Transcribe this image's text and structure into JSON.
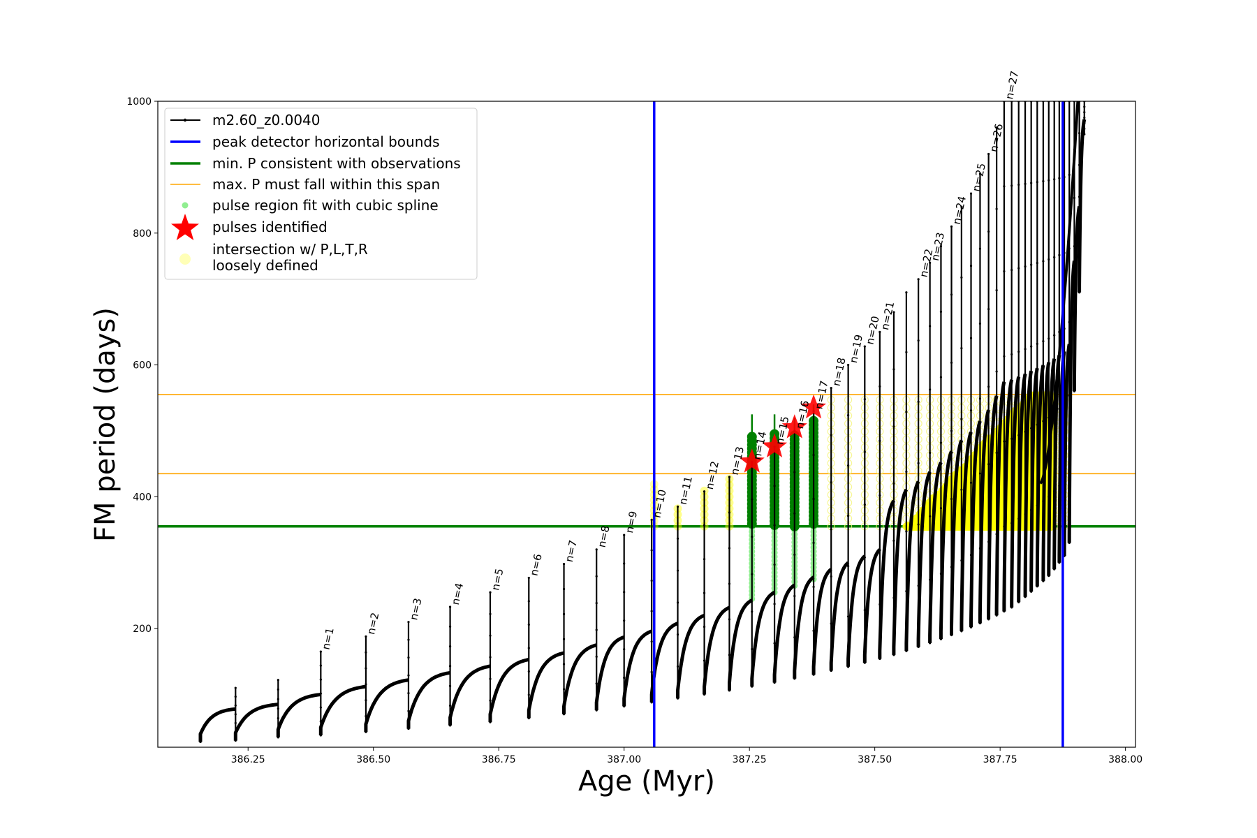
{
  "chart_data": {
    "type": "line",
    "xlabel": "Age (Myr)",
    "ylabel": "FM period (days)",
    "xlim": [
      386.07,
      388.02
    ],
    "ylim": [
      20,
      1000
    ],
    "xticks": [
      386.25,
      386.5,
      386.75,
      387.0,
      387.25,
      387.5,
      387.75,
      388.0
    ],
    "xtick_labels": [
      "386.25",
      "386.50",
      "386.75",
      "387.00",
      "387.25",
      "387.50",
      "387.75",
      "388.00"
    ],
    "yticks": [
      200,
      400,
      600,
      800,
      1000
    ],
    "ytick_labels": [
      "200",
      "400",
      "600",
      "800",
      "1000"
    ],
    "grid": false,
    "legend_position": "upper-left",
    "legend": [
      {
        "label": "m2.60_z0.0040",
        "kind": "line-marker",
        "color": "#000000"
      },
      {
        "label": "peak detector horizontal bounds",
        "kind": "line",
        "color": "#0000ff"
      },
      {
        "label": "min. P consistent with observations",
        "kind": "line",
        "color": "#008000"
      },
      {
        "label": "max. P must fall within this span",
        "kind": "thin-line",
        "color": "#ffa500"
      },
      {
        "label": "pulse region fit with cubic spline",
        "kind": "dot",
        "color": "#90ee90"
      },
      {
        "label": "pulses identified",
        "kind": "star",
        "color": "#ff0000"
      },
      {
        "label": "intersection w/ P,L,T,R\nloosely defined",
        "kind": "circle",
        "color": "#ffff99"
      }
    ],
    "vertical_bounds": [
      387.06,
      387.875
    ],
    "min_period": 355,
    "max_period_span": [
      435,
      555
    ],
    "colors": {
      "track": "#000000",
      "bounds": "#0000ff",
      "minp": "#008000",
      "maxp": "#ffa500",
      "spline": "#90ee90",
      "spline_dark": "#008000",
      "stars": "#ff0000",
      "intersect": "#ffff00"
    },
    "pulses": [
      {
        "x": 386.155,
        "base": 28,
        "peak": 42,
        "pre": 30
      },
      {
        "x": 386.225,
        "base": 30,
        "peak": 110,
        "pre": 78
      },
      {
        "x": 386.31,
        "base": 35,
        "peak": 122,
        "pre": 85
      },
      {
        "x": 386.395,
        "base": 38,
        "peak": 165,
        "pre": 100,
        "label": "n=1"
      },
      {
        "x": 386.485,
        "base": 43,
        "peak": 188,
        "pre": 112,
        "label": "n=2"
      },
      {
        "x": 386.57,
        "base": 48,
        "peak": 210,
        "pre": 122,
        "label": "n=3"
      },
      {
        "x": 386.653,
        "base": 53,
        "peak": 233,
        "pre": 133,
        "label": "n=4"
      },
      {
        "x": 386.733,
        "base": 58,
        "peak": 255,
        "pre": 143,
        "label": "n=5"
      },
      {
        "x": 386.81,
        "base": 64,
        "peak": 277,
        "pre": 153,
        "label": "n=6"
      },
      {
        "x": 386.88,
        "base": 70,
        "peak": 298,
        "pre": 163,
        "label": "n=7"
      },
      {
        "x": 386.945,
        "base": 76,
        "peak": 320,
        "pre": 175,
        "label": "n=8"
      },
      {
        "x": 387.0,
        "base": 82,
        "peak": 342,
        "pre": 187,
        "label": "n=9"
      },
      {
        "x": 387.055,
        "base": 88,
        "peak": 365,
        "pre": 196,
        "label": "n=10"
      },
      {
        "x": 387.107,
        "base": 94,
        "peak": 385,
        "pre": 208,
        "label": "n=11"
      },
      {
        "x": 387.16,
        "base": 100,
        "peak": 408,
        "pre": 220,
        "label": "n=12"
      },
      {
        "x": 387.21,
        "base": 106,
        "peak": 430,
        "pre": 232,
        "label": "n=13"
      },
      {
        "x": 387.255,
        "base": 112,
        "peak": 453,
        "pre": 243,
        "label": "n=14"
      },
      {
        "x": 387.3,
        "base": 118,
        "peak": 476,
        "pre": 255,
        "label": "n=15"
      },
      {
        "x": 387.34,
        "base": 124,
        "peak": 500,
        "pre": 266,
        "label": "n=16"
      },
      {
        "x": 387.378,
        "base": 130,
        "peak": 530,
        "pre": 278,
        "label": "n=17"
      },
      {
        "x": 387.413,
        "base": 136,
        "peak": 565,
        "pre": 290,
        "label": "n=18"
      },
      {
        "x": 387.447,
        "base": 142,
        "peak": 600,
        "pre": 300,
        "label": "n=19"
      },
      {
        "x": 387.48,
        "base": 148,
        "peak": 628,
        "pre": 310,
        "label": "n=20"
      },
      {
        "x": 387.51,
        "base": 154,
        "peak": 650,
        "pre": 320,
        "label": "n=21"
      },
      {
        "x": 387.538,
        "base": 160,
        "peak": 680
      },
      {
        "x": 387.563,
        "base": 166,
        "peak": 710
      },
      {
        "x": 387.587,
        "base": 172,
        "peak": 730,
        "label": "n=22"
      },
      {
        "x": 387.61,
        "base": 178,
        "peak": 755,
        "label": "n=23"
      },
      {
        "x": 387.632,
        "base": 184,
        "peak": 780
      },
      {
        "x": 387.653,
        "base": 190,
        "peak": 810,
        "label": "n=24"
      },
      {
        "x": 387.673,
        "base": 196,
        "peak": 840
      },
      {
        "x": 387.692,
        "base": 202,
        "peak": 860,
        "label": "n=25"
      },
      {
        "x": 387.71,
        "base": 208,
        "peak": 890
      },
      {
        "x": 387.727,
        "base": 214,
        "peak": 920,
        "label": "n=26"
      },
      {
        "x": 387.743,
        "base": 220,
        "peak": 960
      },
      {
        "x": 387.758,
        "base": 226,
        "peak": 1000,
        "label": "n=27"
      },
      {
        "x": 387.773,
        "base": 232,
        "peak": 1000
      },
      {
        "x": 387.787,
        "base": 240,
        "peak": 1000
      },
      {
        "x": 387.8,
        "base": 248,
        "peak": 1000
      },
      {
        "x": 387.812,
        "base": 256,
        "peak": 1000
      },
      {
        "x": 387.824,
        "base": 264,
        "peak": 1000
      },
      {
        "x": 387.836,
        "base": 272,
        "peak": 1000
      },
      {
        "x": 387.847,
        "base": 280,
        "peak": 1000
      },
      {
        "x": 387.858,
        "base": 290,
        "peak": 1000
      },
      {
        "x": 387.868,
        "base": 300,
        "peak": 1000
      },
      {
        "x": 387.878,
        "base": 310,
        "peak": 1000
      },
      {
        "x": 387.888,
        "base": 330,
        "peak": 1000
      },
      {
        "x": 387.898,
        "base": 560,
        "peak": 1000
      },
      {
        "x": 387.908,
        "base": 710,
        "peak": 1000
      },
      {
        "x": 387.918,
        "base": 950,
        "peak": 1000
      }
    ],
    "stars": [
      {
        "x": 387.255,
        "y": 453
      },
      {
        "x": 387.3,
        "y": 476
      },
      {
        "x": 387.34,
        "y": 505
      },
      {
        "x": 387.378,
        "y": 535
      }
    ],
    "spline_regions": [
      {
        "x": 387.255,
        "low": 245,
        "high": 495
      },
      {
        "x": 387.3,
        "low": 255,
        "high": 495
      },
      {
        "x": 387.34,
        "low": 265,
        "high": 495
      },
      {
        "x": 387.378,
        "low": 275,
        "high": 520
      }
    ],
    "spline_dark_tops": [
      {
        "x": 387.255,
        "y": 525
      },
      {
        "x": 387.3,
        "y": 525
      },
      {
        "x": 387.34,
        "y": 520
      },
      {
        "x": 387.378,
        "y": 540
      }
    ]
  }
}
